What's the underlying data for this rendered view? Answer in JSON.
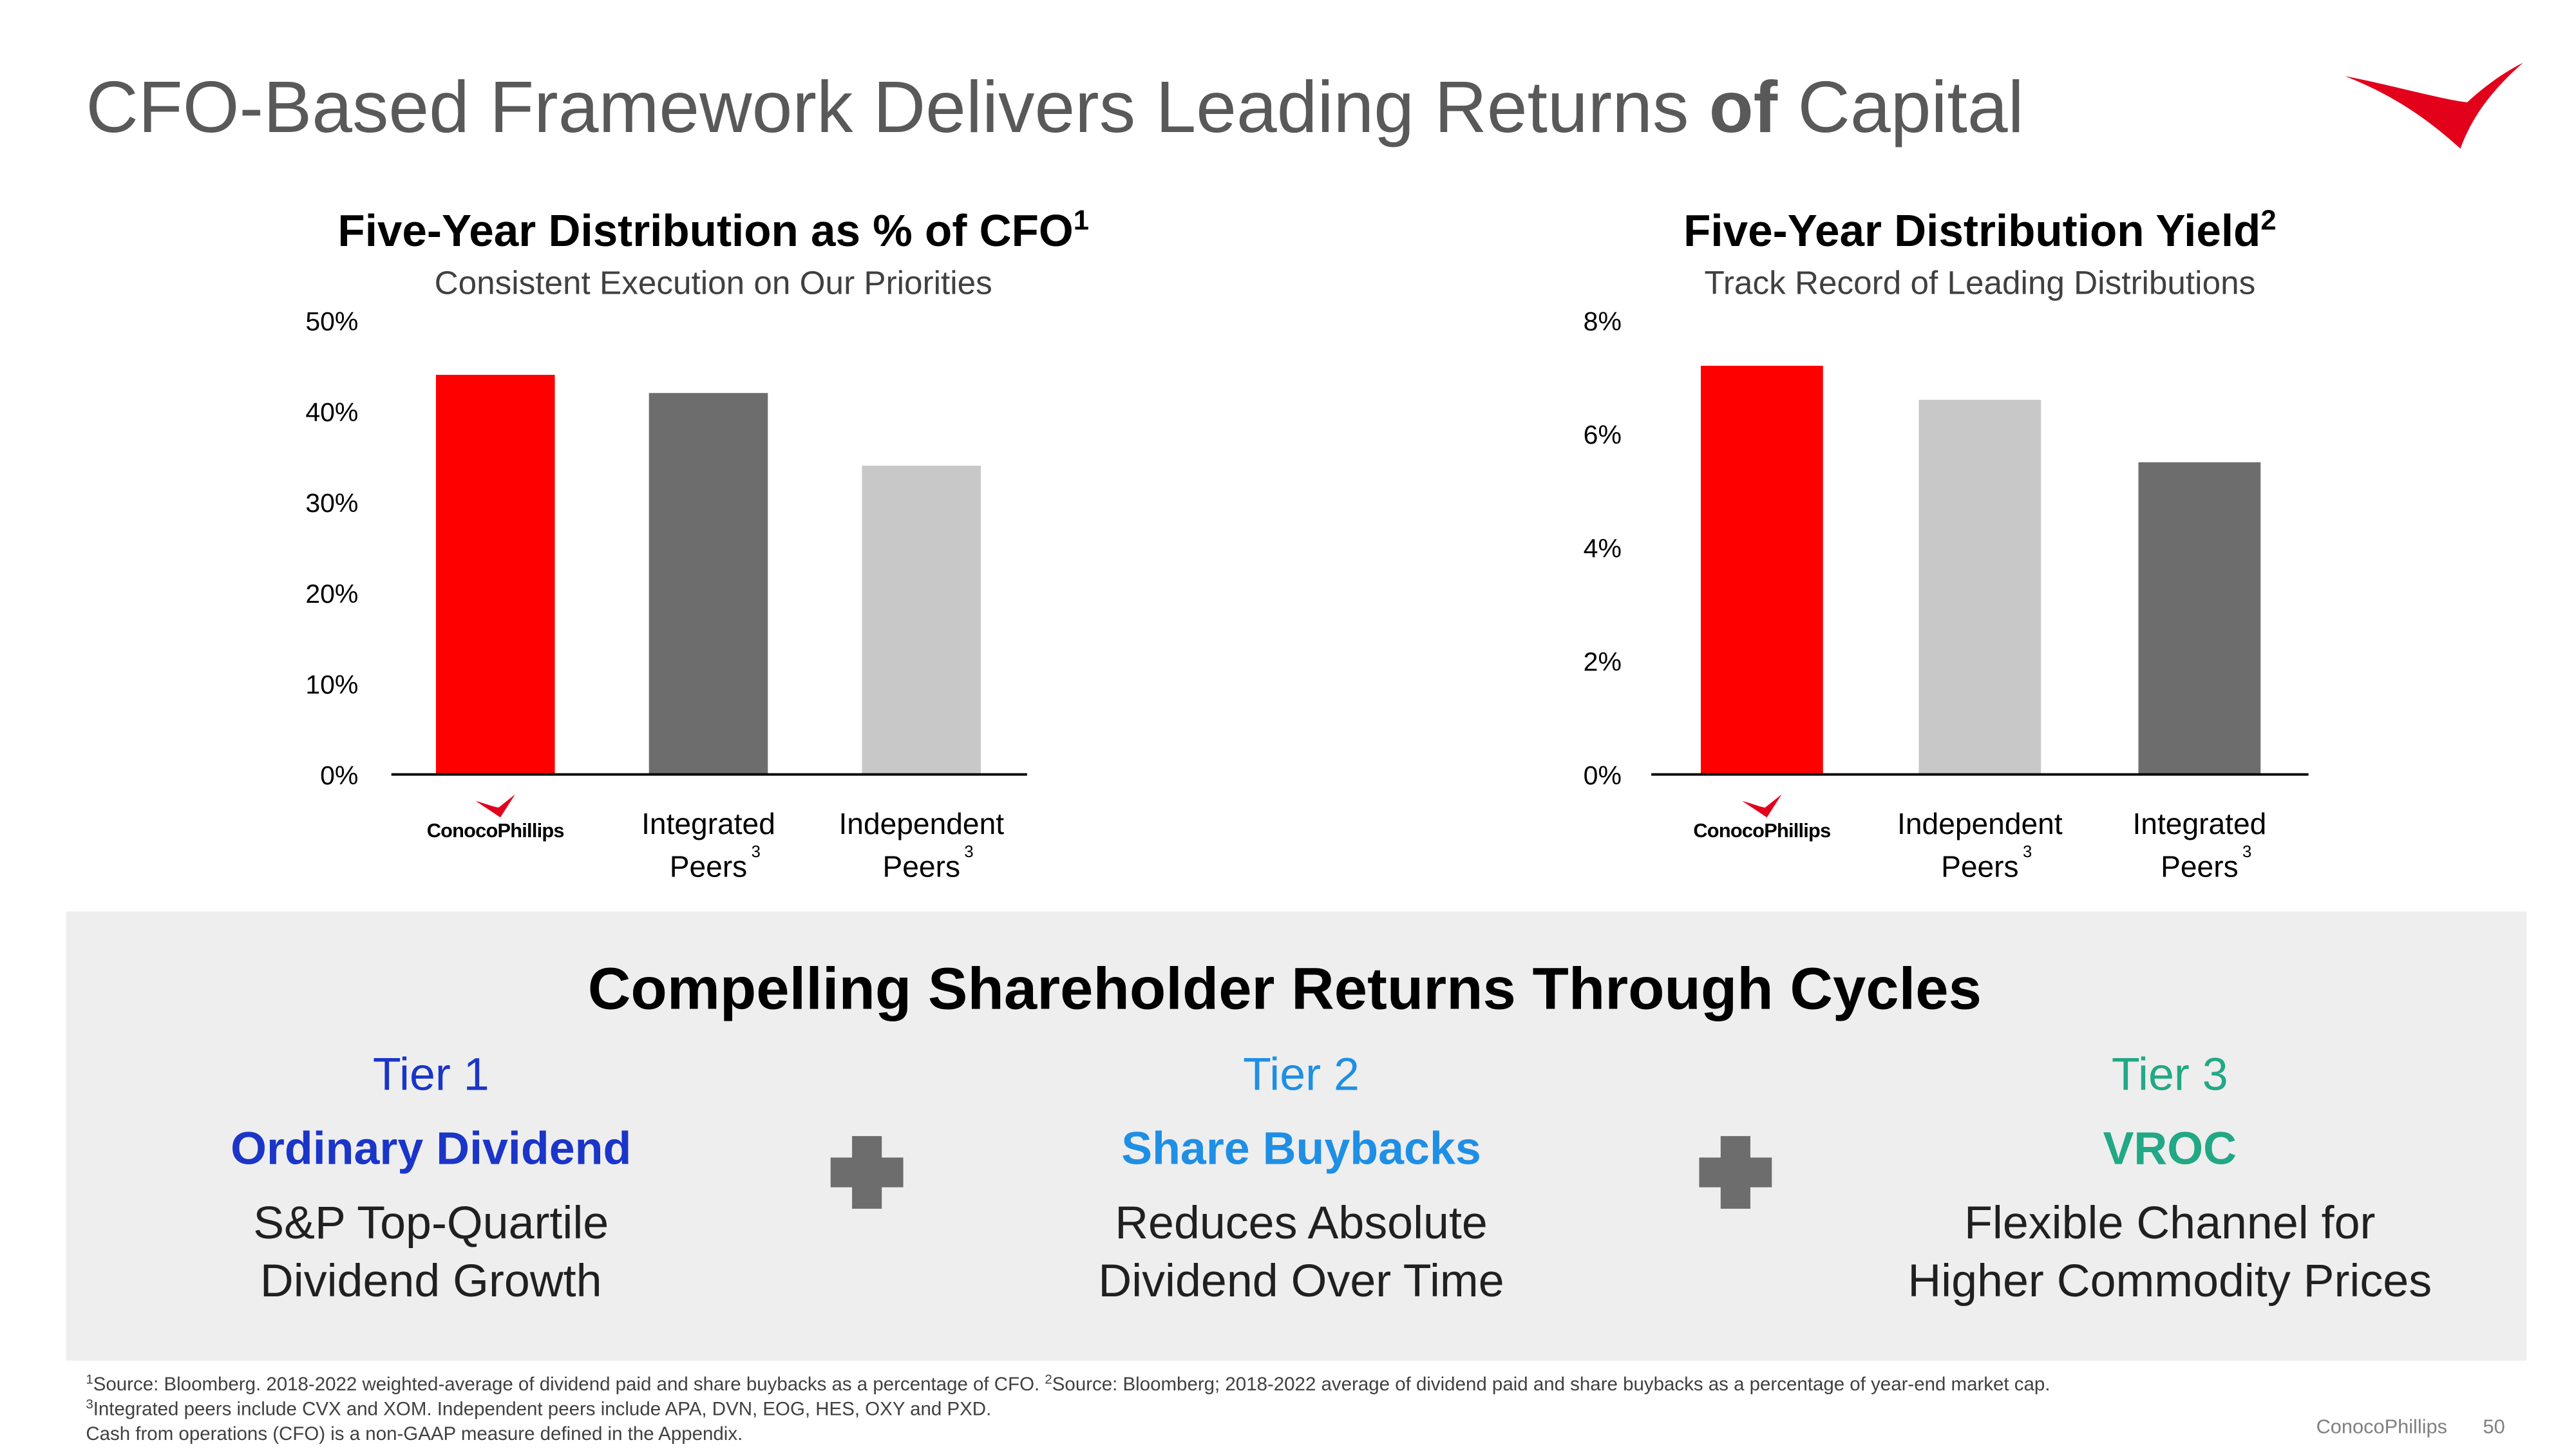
{
  "header": {
    "title_parts": [
      "CFO-Based Framework Delivers Leading Returns ",
      "of",
      " Capital"
    ]
  },
  "chart_data": [
    {
      "type": "bar",
      "title": "Five-Year Distribution as % of CFO",
      "title_footnote": "1",
      "subtitle": "Consistent Execution on Our Priorities",
      "categories": [
        "ConocoPhillips",
        "Integrated Peers",
        "Independent Peers"
      ],
      "category_footnotes": [
        null,
        "3",
        "3"
      ],
      "values": [
        44,
        42,
        34
      ],
      "colors": [
        "#ff0000",
        "#6d6d6d",
        "#c8c8c8"
      ],
      "ylim": [
        0,
        50
      ],
      "yticks": [
        {
          "value": 0,
          "label": "0%"
        },
        {
          "value": 10,
          "label": "10%"
        },
        {
          "value": 20,
          "label": "20%"
        },
        {
          "value": 30,
          "label": "30%"
        },
        {
          "value": 40,
          "label": "40%"
        },
        {
          "value": 50,
          "label": "50%"
        }
      ],
      "grid": false
    },
    {
      "type": "bar",
      "title": "Five-Year Distribution Yield",
      "title_footnote": "2",
      "subtitle": "Track Record of Leading Distributions",
      "categories": [
        "ConocoPhillips",
        "Independent Peers",
        "Integrated Peers"
      ],
      "category_footnotes": [
        null,
        "3",
        "3"
      ],
      "values": [
        7.2,
        6.6,
        5.5
      ],
      "colors": [
        "#ff0000",
        "#c8c8c8",
        "#6d6d6d"
      ],
      "ylim": [
        0,
        8
      ],
      "yticks": [
        {
          "value": 0,
          "label": "0%"
        },
        {
          "value": 2,
          "label": "2%"
        },
        {
          "value": 4,
          "label": "4%"
        },
        {
          "value": 6,
          "label": "6%"
        },
        {
          "value": 8,
          "label": "8%"
        }
      ],
      "grid": false
    }
  ],
  "panel": {
    "title": "Compelling Shareholder Returns Through Cycles",
    "tiers": [
      {
        "tier": "Tier 1",
        "name": "Ordinary Dividend",
        "description": [
          "S&P Top-Quartile",
          "Dividend Growth"
        ],
        "color": "#1a35c8"
      },
      {
        "tier": "Tier 2",
        "name": "Share Buybacks",
        "description": [
          "Reduces Absolute",
          "Dividend Over Time"
        ],
        "color": "#1f8fe5"
      },
      {
        "tier": "Tier 3",
        "name": "VROC",
        "description": [
          "Flexible Channel for",
          "Higher Commodity Prices"
        ],
        "color": "#22a884"
      }
    ]
  },
  "footnotes": [
    [
      {
        "marker": "1",
        "text": "Source: Bloomberg. 2018-2022 weighted-average of dividend paid and share buybacks as a percentage of CFO. "
      },
      {
        "marker": "2",
        "text": "Source: Bloomberg; 2018-2022 average of dividend paid and share buybacks as a percentage of year-end market cap."
      }
    ],
    [
      {
        "marker": "3",
        "text": "Integrated peers include CVX and XOM. Independent peers include APA, DVN, EOG, HES, OXY and PXD."
      }
    ],
    [
      {
        "text": "Cash from operations (CFO) is a non-GAAP measure defined in the Appendix."
      }
    ]
  ],
  "footer": {
    "company": "ConocoPhillips",
    "page": "50"
  }
}
